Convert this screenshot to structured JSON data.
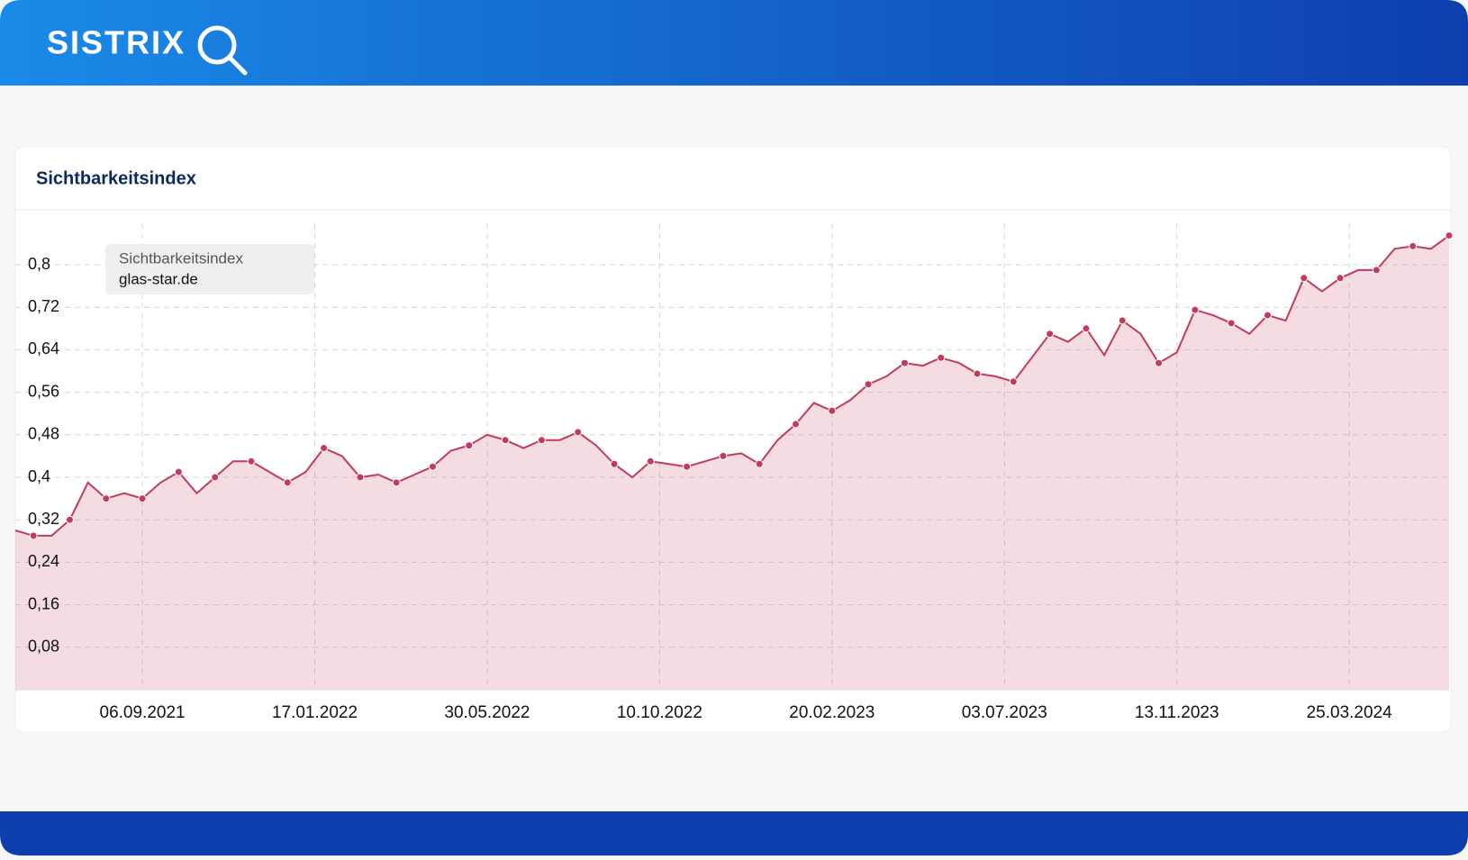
{
  "header": {
    "logo": "SISTRIX"
  },
  "chart_data": {
    "type": "line",
    "title": "Sichtbarkeitsindex",
    "legend_title": "Sichtbarkeitsindex",
    "x": [
      "31.05.2021",
      "14.06.2021",
      "28.06.2021",
      "12.07.2021",
      "26.07.2021",
      "09.08.2021",
      "23.08.2021",
      "06.09.2021",
      "20.09.2021",
      "04.10.2021",
      "18.10.2021",
      "01.11.2021",
      "15.11.2021",
      "29.11.2021",
      "13.12.2021",
      "27.12.2021",
      "10.01.2022",
      "24.01.2022",
      "07.02.2022",
      "21.02.2022",
      "07.03.2022",
      "21.03.2022",
      "04.04.2022",
      "18.04.2022",
      "02.05.2022",
      "16.05.2022",
      "30.05.2022",
      "13.06.2022",
      "27.06.2022",
      "11.07.2022",
      "25.07.2022",
      "08.08.2022",
      "22.08.2022",
      "05.09.2022",
      "19.09.2022",
      "03.10.2022",
      "17.10.2022",
      "31.10.2022",
      "14.11.2022",
      "28.11.2022",
      "12.12.2022",
      "26.12.2022",
      "09.01.2023",
      "23.01.2023",
      "06.02.2023",
      "20.02.2023",
      "06.03.2023",
      "20.03.2023",
      "03.04.2023",
      "17.04.2023",
      "01.05.2023",
      "15.05.2023",
      "29.05.2023",
      "12.06.2023",
      "26.06.2023",
      "10.07.2023",
      "24.07.2023",
      "07.08.2023",
      "21.08.2023",
      "04.09.2023",
      "18.09.2023",
      "02.10.2023",
      "16.10.2023",
      "30.10.2023",
      "13.11.2023",
      "27.11.2023",
      "11.12.2023",
      "25.12.2023",
      "08.01.2024",
      "22.01.2024",
      "05.02.2024",
      "19.02.2024",
      "04.03.2024",
      "18.03.2024",
      "01.04.2024",
      "15.04.2024",
      "29.04.2024",
      "13.05.2024",
      "27.05.2024",
      "10.06.2024"
    ],
    "series": [
      {
        "name": "glas-star.de",
        "color": "#c23b5c",
        "values": [
          0.3,
          0.29,
          0.29,
          0.32,
          0.39,
          0.36,
          0.37,
          0.36,
          0.39,
          0.41,
          0.37,
          0.4,
          0.43,
          0.43,
          0.41,
          0.39,
          0.41,
          0.455,
          0.44,
          0.4,
          0.405,
          0.39,
          0.405,
          0.42,
          0.45,
          0.46,
          0.48,
          0.47,
          0.455,
          0.47,
          0.47,
          0.485,
          0.46,
          0.425,
          0.4,
          0.43,
          0.425,
          0.42,
          0.43,
          0.44,
          0.445,
          0.425,
          0.47,
          0.5,
          0.54,
          0.525,
          0.545,
          0.575,
          0.59,
          0.615,
          0.61,
          0.625,
          0.615,
          0.595,
          0.59,
          0.58,
          0.625,
          0.67,
          0.655,
          0.68,
          0.63,
          0.695,
          0.67,
          0.615,
          0.635,
          0.715,
          0.705,
          0.69,
          0.67,
          0.705,
          0.695,
          0.775,
          0.75,
          0.775,
          0.79,
          0.79,
          0.83,
          0.835,
          0.83,
          0.855
        ]
      }
    ],
    "ylim": [
      0,
      0.9
    ],
    "yticks": [
      {
        "value": 0.08,
        "label": "0,08"
      },
      {
        "value": 0.16,
        "label": "0,16"
      },
      {
        "value": 0.24,
        "label": "0,24"
      },
      {
        "value": 0.32,
        "label": "0,32"
      },
      {
        "value": 0.4,
        "label": "0,4"
      },
      {
        "value": 0.48,
        "label": "0,48"
      },
      {
        "value": 0.56,
        "label": "0,56"
      },
      {
        "value": 0.64,
        "label": "0,64"
      },
      {
        "value": 0.72,
        "label": "0,72"
      },
      {
        "value": 0.8,
        "label": "0,8"
      }
    ],
    "xticks": [
      "06.09.2021",
      "17.01.2022",
      "30.05.2022",
      "10.10.2022",
      "20.02.2023",
      "03.07.2023",
      "13.11.2023",
      "25.03.2024"
    ],
    "grid": true
  }
}
